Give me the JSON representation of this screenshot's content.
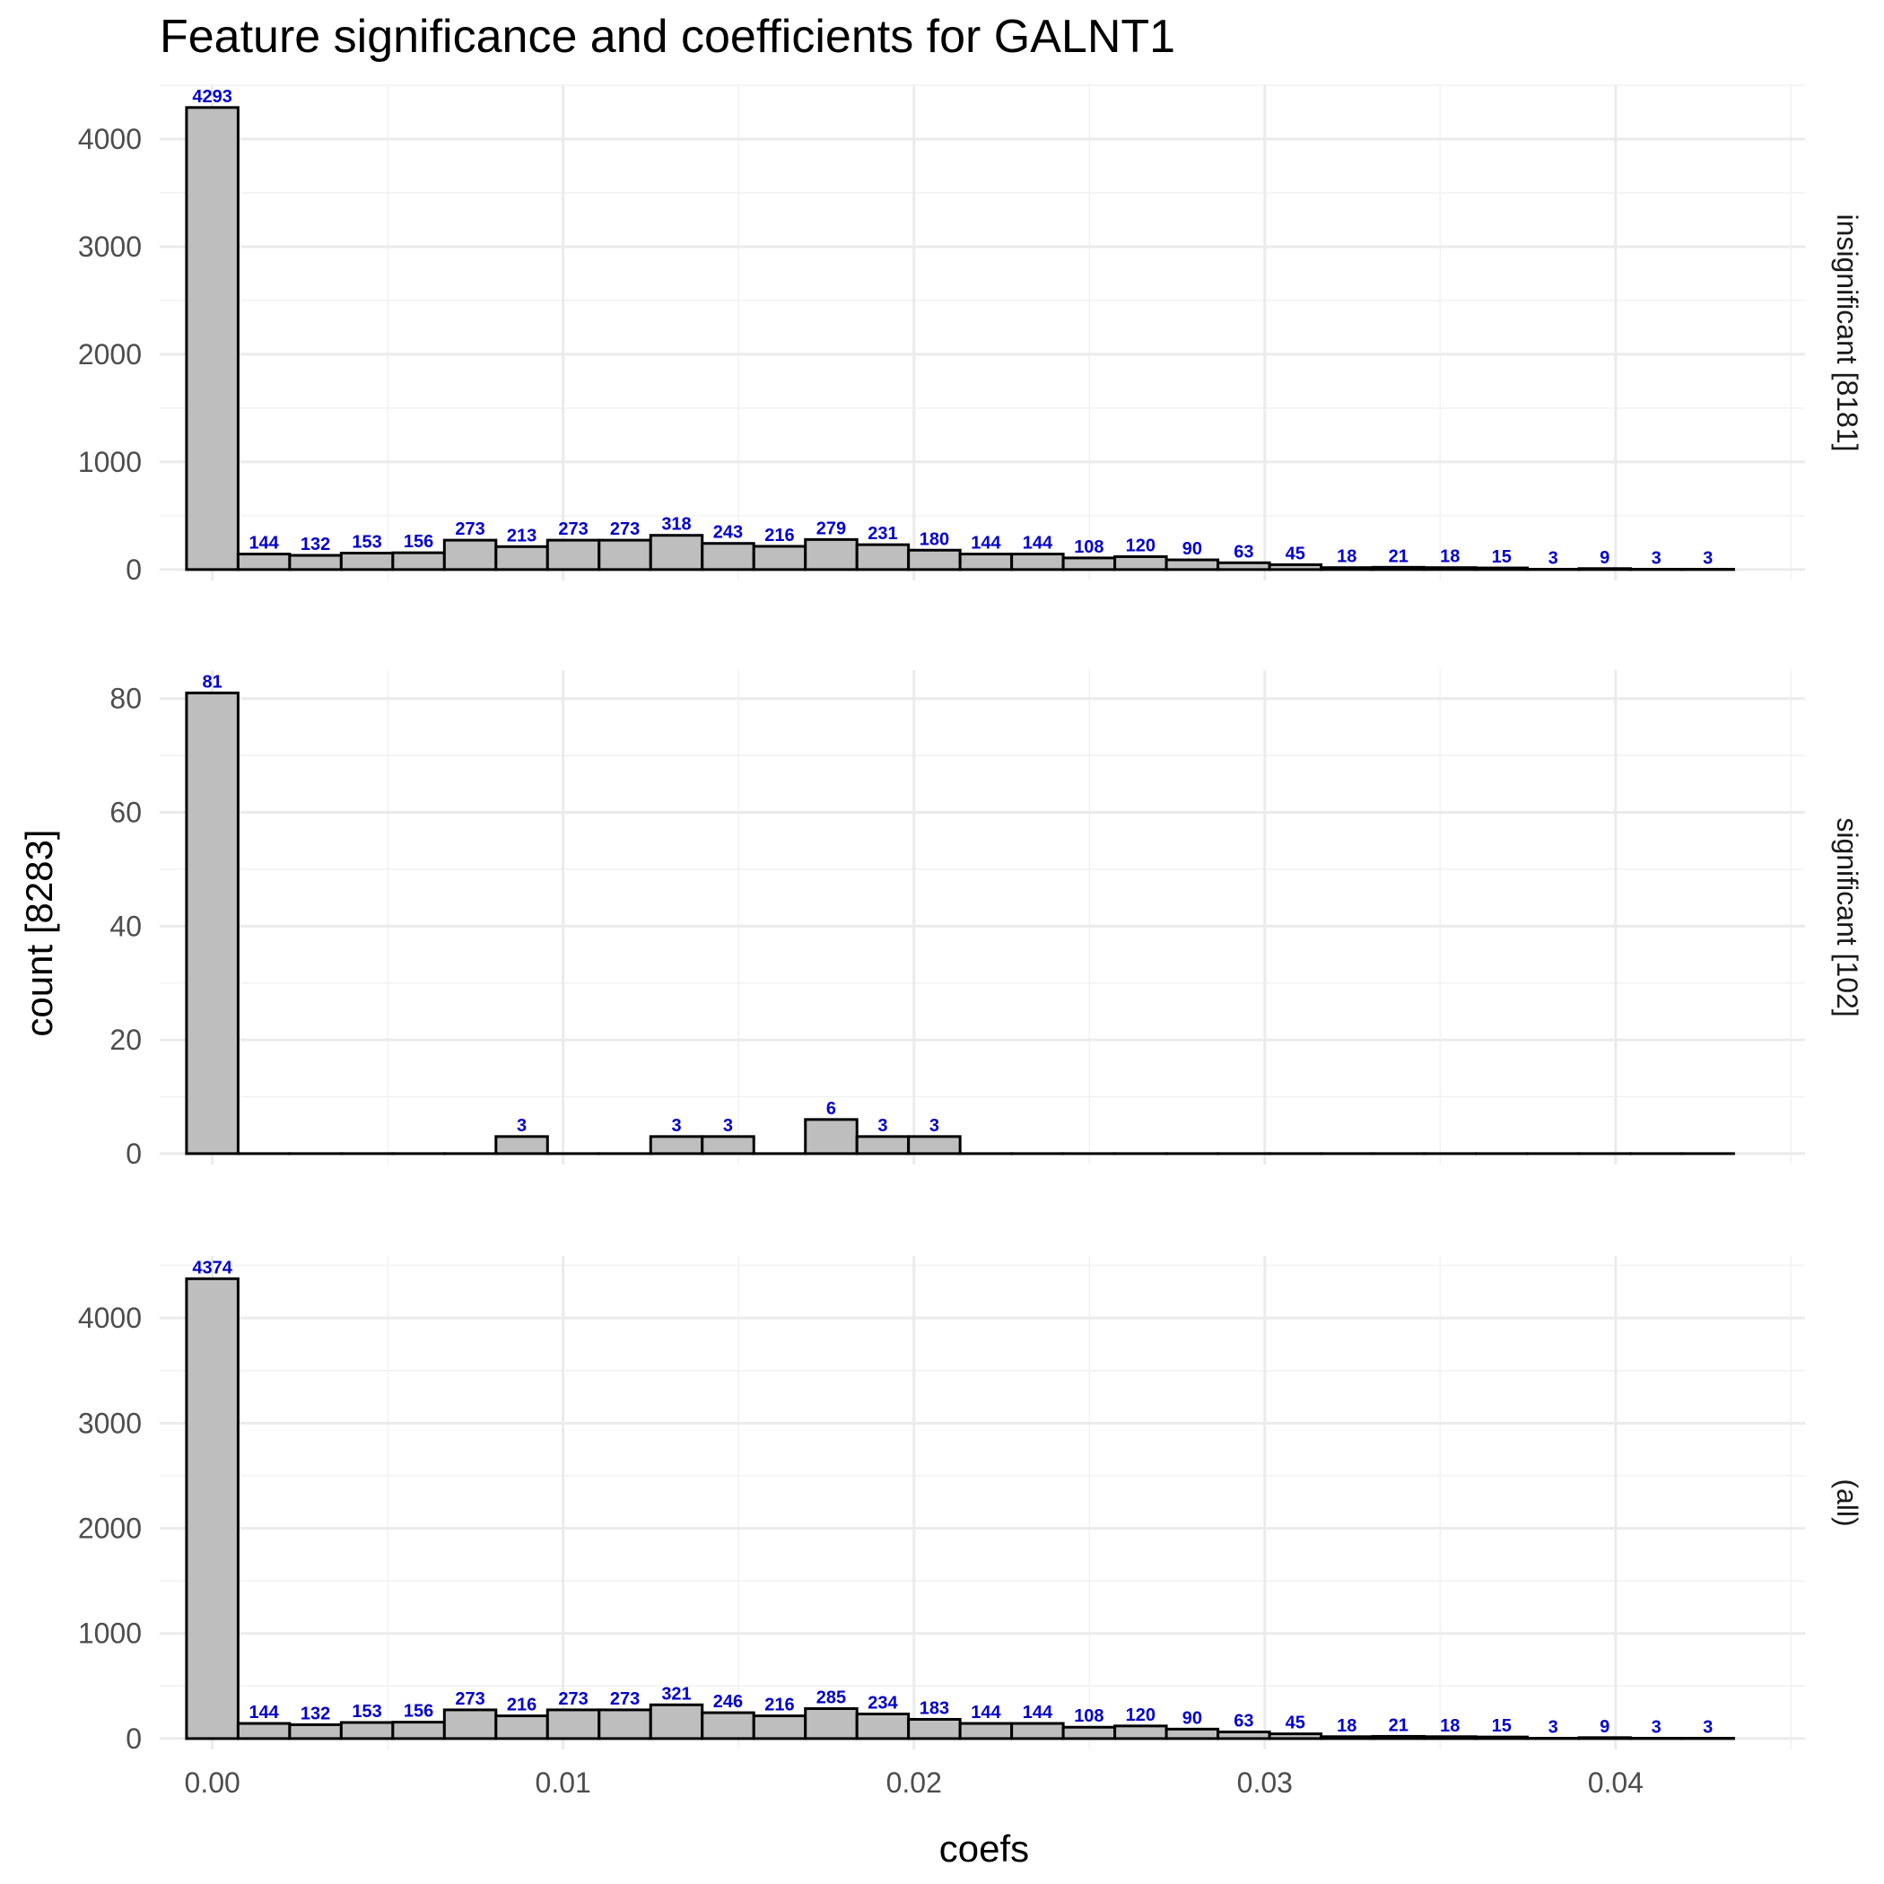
{
  "chart_data": {
    "type": "bar",
    "title": "Feature significance and coefficients for GALNT1",
    "xlabel": "coefs",
    "ylabel": "count [8283]",
    "xlim": [
      -0.0015,
      0.0454
    ],
    "xticks": [
      0.0,
      0.01,
      0.02,
      0.03,
      0.04
    ],
    "xtick_labels": [
      "0.00",
      "0.01",
      "0.02",
      "0.03",
      "0.04"
    ],
    "bin_width": 0.00147,
    "bin_start": -0.000735,
    "grid": true,
    "panels": [
      {
        "strip_label": "insignificant [8181]",
        "ylim": [
          0,
          4500
        ],
        "yticks": [
          0,
          1000,
          2000,
          3000,
          4000
        ],
        "values": [
          4293,
          144,
          132,
          153,
          156,
          273,
          213,
          273,
          273,
          318,
          243,
          216,
          279,
          231,
          180,
          144,
          144,
          108,
          120,
          90,
          63,
          45,
          18,
          21,
          18,
          15,
          3,
          9,
          3,
          3
        ]
      },
      {
        "strip_label": "significant [102]",
        "ylim": [
          0,
          85
        ],
        "yticks": [
          0,
          20,
          40,
          60,
          80
        ],
        "values": [
          81,
          0,
          0,
          0,
          0,
          0,
          3,
          0,
          0,
          3,
          3,
          0,
          6,
          3,
          3,
          0,
          0,
          0,
          0,
          0,
          0,
          0,
          0,
          0,
          0,
          0,
          0,
          0,
          0,
          0
        ]
      },
      {
        "strip_label": "(all)",
        "ylim": [
          0,
          4590
        ],
        "yticks": [
          0,
          1000,
          2000,
          3000,
          4000
        ],
        "values": [
          4374,
          144,
          132,
          153,
          156,
          273,
          216,
          273,
          273,
          321,
          246,
          216,
          285,
          234,
          183,
          144,
          144,
          108,
          120,
          90,
          63,
          45,
          18,
          21,
          18,
          15,
          3,
          9,
          3,
          3
        ]
      }
    ]
  }
}
